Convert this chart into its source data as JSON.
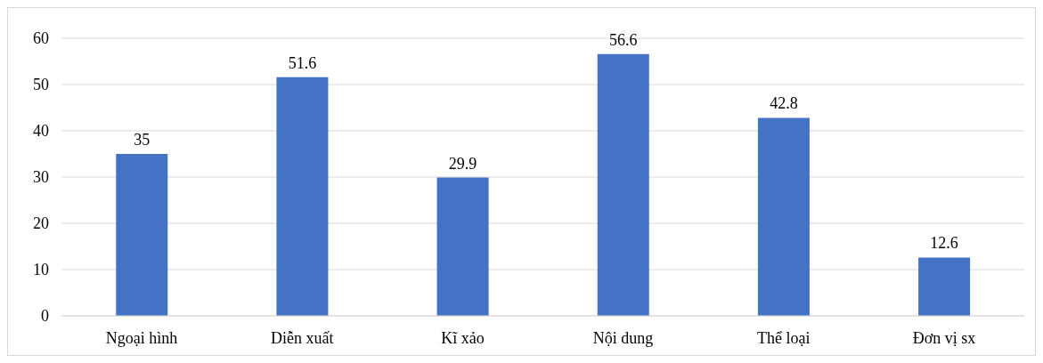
{
  "chart_data": {
    "type": "bar",
    "categories": [
      "Ngoại hình",
      "Diễn xuất",
      "Kĩ xảo",
      "Nội dung",
      "Thể loại",
      "Đơn vị sx"
    ],
    "values": [
      35,
      51.6,
      29.9,
      56.6,
      42.8,
      12.6
    ],
    "color": "#4472c4",
    "ylim": [
      0,
      60
    ],
    "yticks": [
      0,
      10,
      20,
      30,
      40,
      50,
      60
    ],
    "grid": "y",
    "data_labels": true
  }
}
